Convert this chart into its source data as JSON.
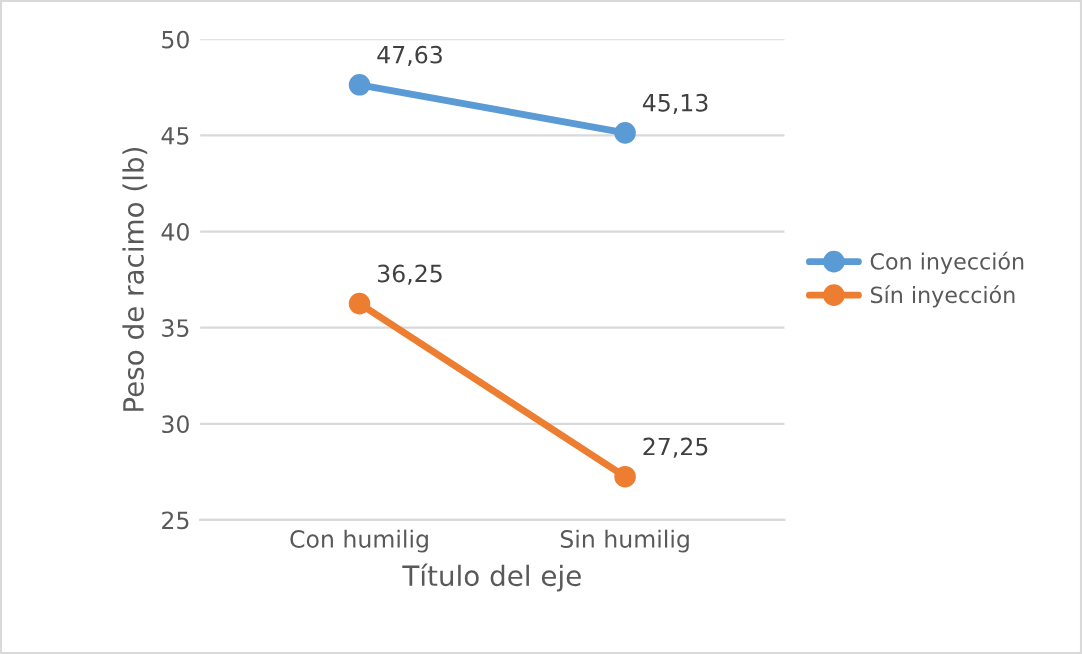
{
  "chart_data": {
    "type": "line",
    "xlabel": "Título del eje",
    "ylabel": "Peso de racimo (lb)",
    "categories": [
      "Con humilig",
      "Sin humilig"
    ],
    "series": [
      {
        "name": "Con inyección",
        "color": "#5b9bd5",
        "values": [
          47.63,
          45.13
        ],
        "value_labels": [
          "47,63",
          "45,13"
        ]
      },
      {
        "name": "Sín inyección",
        "color": "#ed7d31",
        "values": [
          36.25,
          27.25
        ],
        "value_labels": [
          "36,25",
          "27,25"
        ]
      }
    ],
    "ylim": [
      25,
      50
    ],
    "yticks": [
      25,
      30,
      35,
      40,
      45,
      50
    ],
    "grid": "y",
    "legend": "right",
    "marker": "circle",
    "line_style": "solid"
  }
}
